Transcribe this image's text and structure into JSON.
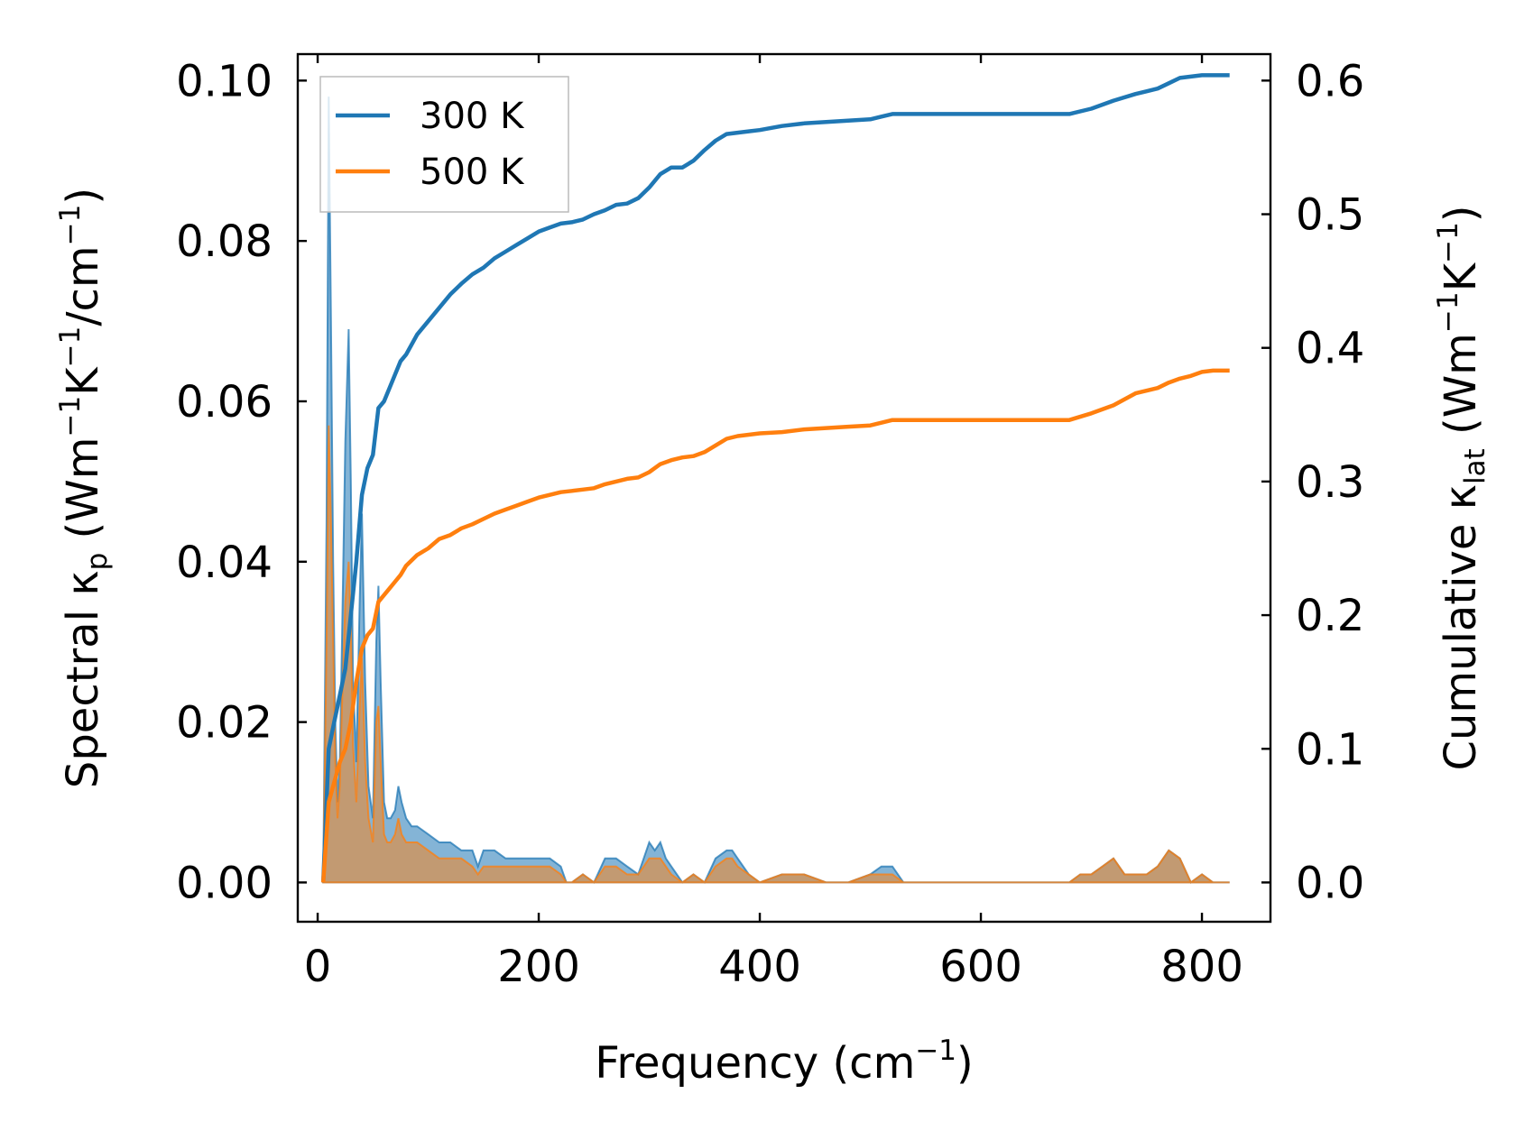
{
  "chart_data": {
    "type": "area",
    "xlabel": "Frequency (cm",
    "xlabel_sup": "−1",
    "xlabel_tail": ")",
    "ylabel_left": {
      "prefix": "Spectral κ",
      "sub": "p",
      "mid1": " (Wm",
      "sup1": "−1",
      "mid2": "K",
      "sup2": "−1",
      "mid3": "/cm",
      "sup3": "−1",
      "tail": ")"
    },
    "ylabel_right": {
      "prefix": "Cumulative κ",
      "sub": "lat",
      "mid1": " (Wm",
      "sup1": "−1",
      "mid2": "K",
      "sup2": "−1",
      "tail": ")"
    },
    "xlim": [
      -18,
      862
    ],
    "ylim_left": [
      -0.0049,
      0.1033
    ],
    "ylim_right": [
      -0.0294,
      0.6198
    ],
    "x_ticks": [
      0,
      200,
      400,
      600,
      800
    ],
    "x_tick_labels": [
      "0",
      "200",
      "400",
      "600",
      "800"
    ],
    "y_left_ticks": [
      0.0,
      0.02,
      0.04,
      0.06,
      0.08,
      0.1
    ],
    "y_left_tick_labels": [
      "0.00",
      "0.02",
      "0.04",
      "0.06",
      "0.08",
      "0.10"
    ],
    "y_right_ticks": [
      0.0,
      0.1,
      0.2,
      0.3,
      0.4,
      0.5,
      0.6
    ],
    "y_right_tick_labels": [
      "0.0",
      "0.1",
      "0.2",
      "0.3",
      "0.4",
      "0.5",
      "0.6"
    ],
    "legend": {
      "position": "top-left",
      "entries": [
        "300 K",
        "500 K"
      ]
    },
    "series": [
      {
        "name": "300 K",
        "color": "#1f77b4",
        "cumulative": {
          "x": [
            5,
            10,
            15,
            20,
            25,
            30,
            35,
            40,
            45,
            50,
            55,
            60,
            65,
            70,
            75,
            80,
            90,
            100,
            110,
            120,
            130,
            140,
            150,
            160,
            170,
            180,
            190,
            200,
            210,
            220,
            230,
            240,
            250,
            260,
            270,
            280,
            290,
            300,
            310,
            320,
            330,
            340,
            350,
            360,
            370,
            380,
            390,
            400,
            420,
            440,
            460,
            480,
            500,
            510,
            520,
            530,
            540,
            560,
            600,
            640,
            680,
            700,
            720,
            740,
            760,
            770,
            780,
            790,
            800,
            810,
            825
          ],
          "y": [
            0.0,
            0.1,
            0.12,
            0.14,
            0.16,
            0.2,
            0.24,
            0.29,
            0.31,
            0.32,
            0.355,
            0.36,
            0.37,
            0.38,
            0.39,
            0.395,
            0.41,
            0.42,
            0.43,
            0.44,
            0.448,
            0.455,
            0.46,
            0.467,
            0.472,
            0.477,
            0.482,
            0.487,
            0.49,
            0.493,
            0.494,
            0.496,
            0.5,
            0.503,
            0.507,
            0.508,
            0.512,
            0.52,
            0.53,
            0.535,
            0.535,
            0.54,
            0.548,
            0.555,
            0.56,
            0.561,
            0.562,
            0.563,
            0.566,
            0.568,
            0.569,
            0.57,
            0.571,
            0.573,
            0.575,
            0.575,
            0.575,
            0.575,
            0.575,
            0.575,
            0.575,
            0.579,
            0.585,
            0.59,
            0.594,
            0.598,
            0.602,
            0.603,
            0.604,
            0.604,
            0.604
          ]
        },
        "spectral": {
          "x": [
            5,
            8,
            10,
            12,
            14,
            16,
            18,
            20,
            22,
            25,
            28,
            30,
            32,
            35,
            38,
            40,
            43,
            46,
            50,
            53,
            55,
            57,
            60,
            63,
            66,
            70,
            73,
            76,
            80,
            85,
            90,
            100,
            110,
            120,
            130,
            140,
            145,
            150,
            160,
            170,
            180,
            190,
            200,
            210,
            220,
            225,
            230,
            240,
            250,
            260,
            270,
            280,
            290,
            295,
            300,
            305,
            310,
            315,
            320,
            330,
            340,
            350,
            360,
            370,
            375,
            380,
            390,
            400,
            420,
            440,
            460,
            480,
            500,
            510,
            520,
            530,
            540,
            560,
            600,
            640,
            680,
            690,
            700,
            710,
            720,
            730,
            740,
            750,
            760,
            770,
            780,
            790,
            800,
            810,
            825
          ],
          "y": [
            0.0,
            0.045,
            0.098,
            0.07,
            0.04,
            0.02,
            0.01,
            0.015,
            0.03,
            0.055,
            0.069,
            0.05,
            0.025,
            0.015,
            0.035,
            0.046,
            0.025,
            0.012,
            0.008,
            0.03,
            0.037,
            0.025,
            0.01,
            0.008,
            0.008,
            0.009,
            0.012,
            0.01,
            0.008,
            0.007,
            0.007,
            0.006,
            0.005,
            0.005,
            0.004,
            0.004,
            0.002,
            0.004,
            0.004,
            0.003,
            0.003,
            0.003,
            0.003,
            0.003,
            0.002,
            0.0,
            0.0,
            0.001,
            0.0,
            0.003,
            0.003,
            0.002,
            0.001,
            0.003,
            0.005,
            0.004,
            0.005,
            0.003,
            0.002,
            0.0,
            0.001,
            0.0,
            0.003,
            0.004,
            0.004,
            0.003,
            0.001,
            0.0,
            0.001,
            0.001,
            0.0,
            0.0,
            0.001,
            0.002,
            0.002,
            0.0,
            0.0,
            0.0,
            0.0,
            0.0,
            0.0,
            0.001,
            0.001,
            0.002,
            0.003,
            0.001,
            0.001,
            0.001,
            0.002,
            0.004,
            0.003,
            0.0,
            0.001,
            0.0,
            0.0
          ]
        }
      },
      {
        "name": "500 K",
        "color": "#ff7f0e",
        "cumulative": {
          "x": [
            5,
            10,
            15,
            20,
            25,
            30,
            35,
            40,
            45,
            50,
            55,
            60,
            65,
            70,
            75,
            80,
            90,
            100,
            110,
            120,
            130,
            140,
            150,
            160,
            170,
            180,
            190,
            200,
            210,
            220,
            230,
            240,
            250,
            260,
            270,
            280,
            290,
            300,
            310,
            320,
            330,
            340,
            350,
            360,
            370,
            380,
            390,
            400,
            420,
            440,
            460,
            480,
            500,
            510,
            520,
            530,
            540,
            560,
            600,
            640,
            680,
            700,
            720,
            740,
            760,
            770,
            780,
            790,
            800,
            810,
            825
          ],
          "y": [
            0.0,
            0.06,
            0.075,
            0.09,
            0.1,
            0.12,
            0.15,
            0.175,
            0.185,
            0.19,
            0.21,
            0.215,
            0.22,
            0.225,
            0.23,
            0.237,
            0.245,
            0.25,
            0.257,
            0.26,
            0.265,
            0.268,
            0.272,
            0.276,
            0.279,
            0.282,
            0.285,
            0.288,
            0.29,
            0.292,
            0.293,
            0.294,
            0.295,
            0.298,
            0.3,
            0.302,
            0.303,
            0.307,
            0.313,
            0.316,
            0.318,
            0.319,
            0.322,
            0.327,
            0.332,
            0.334,
            0.335,
            0.336,
            0.337,
            0.339,
            0.34,
            0.341,
            0.342,
            0.344,
            0.346,
            0.346,
            0.346,
            0.346,
            0.346,
            0.346,
            0.346,
            0.351,
            0.357,
            0.366,
            0.37,
            0.374,
            0.377,
            0.379,
            0.382,
            0.383,
            0.383
          ]
        },
        "spectral": {
          "x": [
            5,
            8,
            10,
            12,
            14,
            16,
            18,
            20,
            22,
            25,
            28,
            30,
            32,
            35,
            38,
            40,
            43,
            46,
            50,
            53,
            55,
            57,
            60,
            63,
            66,
            70,
            73,
            76,
            80,
            85,
            90,
            100,
            110,
            120,
            130,
            140,
            145,
            150,
            160,
            170,
            180,
            190,
            200,
            210,
            220,
            225,
            230,
            240,
            250,
            260,
            270,
            280,
            290,
            295,
            300,
            305,
            310,
            315,
            320,
            330,
            340,
            350,
            360,
            370,
            375,
            380,
            390,
            400,
            420,
            440,
            460,
            480,
            500,
            510,
            520,
            530,
            540,
            560,
            600,
            640,
            680,
            690,
            700,
            710,
            720,
            730,
            740,
            750,
            760,
            770,
            780,
            790,
            800,
            810,
            825
          ],
          "y": [
            0.0,
            0.03,
            0.057,
            0.045,
            0.03,
            0.015,
            0.008,
            0.012,
            0.022,
            0.035,
            0.04,
            0.032,
            0.017,
            0.01,
            0.022,
            0.028,
            0.015,
            0.008,
            0.005,
            0.02,
            0.022,
            0.015,
            0.006,
            0.005,
            0.005,
            0.006,
            0.008,
            0.006,
            0.005,
            0.005,
            0.005,
            0.004,
            0.003,
            0.003,
            0.003,
            0.002,
            0.001,
            0.002,
            0.002,
            0.002,
            0.002,
            0.002,
            0.002,
            0.002,
            0.001,
            0.0,
            0.0,
            0.001,
            0.0,
            0.002,
            0.002,
            0.001,
            0.001,
            0.002,
            0.003,
            0.003,
            0.003,
            0.002,
            0.001,
            0.0,
            0.001,
            0.0,
            0.002,
            0.003,
            0.003,
            0.002,
            0.001,
            0.0,
            0.001,
            0.001,
            0.0,
            0.0,
            0.001,
            0.001,
            0.001,
            0.0,
            0.0,
            0.0,
            0.0,
            0.0,
            0.0,
            0.001,
            0.001,
            0.002,
            0.003,
            0.001,
            0.001,
            0.001,
            0.002,
            0.004,
            0.003,
            0.0,
            0.001,
            0.0,
            0.0
          ]
        }
      }
    ]
  }
}
